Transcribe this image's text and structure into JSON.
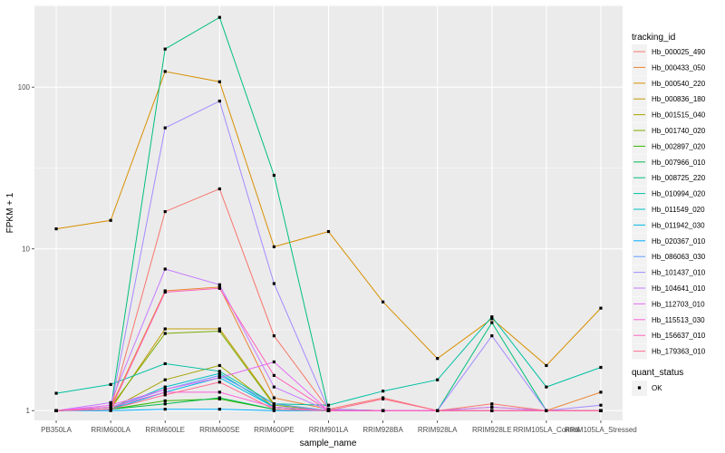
{
  "chart_data": {
    "type": "line",
    "xlabel": "sample_name",
    "ylabel": "FPKM + 1",
    "y_scale": "log10",
    "ylim": [
      0.87,
      320
    ],
    "y_ticks": [
      1,
      10,
      100
    ],
    "y_tick_labels": [
      "1",
      "10",
      "100"
    ],
    "categories": [
      "PB350LA",
      "RRIM600LA",
      "RRIM600LE",
      "RRIM600SE",
      "RRIM600PE",
      "RRIM901LA",
      "RRIM928BA",
      "RRIM928LA",
      "RRIM928LE",
      "RRIM105LA_Control",
      "RRIM105LA_Stressed"
    ],
    "category_tick_labels": [
      "PB350LA",
      "RRIM600LA",
      "RRIM600LE",
      "RRIM600SE",
      "RRIM600PE",
      "RRIM901LA",
      "RRIM928BA",
      "RRIM928LA",
      "RRIM928LE",
      "RRIM105LA_Control",
      "RRIM105LA_Stressed"
    ],
    "grid": true,
    "legend_position": "right",
    "legend_title": "tracking_id",
    "series": [
      {
        "name": "Hb_000025_490",
        "color": "#F8766D",
        "values": [
          1,
          1.02,
          17,
          23.5,
          2.9,
          1.02,
          1.2,
          1,
          1.1,
          1,
          1
        ]
      },
      {
        "name": "Hb_000433_050",
        "color": "#EA8331",
        "values": [
          1,
          1.05,
          5.5,
          5.8,
          1.2,
          1.02,
          1,
          1,
          1.05,
          1,
          1.3
        ]
      },
      {
        "name": "Hb_000540_220",
        "color": "#D89000",
        "values": [
          13.3,
          15,
          125,
          108,
          10.3,
          12.8,
          4.7,
          2.1,
          3.7,
          1.9,
          4.3
        ]
      },
      {
        "name": "Hb_000836_180",
        "color": "#C09B00",
        "values": [
          1,
          1.02,
          3.2,
          3.2,
          1.1,
          1,
          1,
          1,
          1,
          1,
          1
        ]
      },
      {
        "name": "Hb_001515_040",
        "color": "#A3A500",
        "values": [
          1,
          1.02,
          1.55,
          1.9,
          1.05,
          1,
          1,
          1,
          1,
          1,
          1
        ]
      },
      {
        "name": "Hb_001740_020",
        "color": "#7CAE00",
        "values": [
          1,
          1.05,
          3.0,
          3.1,
          1.08,
          1,
          1,
          1,
          1,
          1,
          1
        ]
      },
      {
        "name": "Hb_002897_020",
        "color": "#39B600",
        "values": [
          1,
          1.02,
          1.15,
          1.18,
          1.02,
          1,
          1,
          1,
          1,
          1,
          1
        ]
      },
      {
        "name": "Hb_007966_010",
        "color": "#00BB4E",
        "values": [
          1,
          1.02,
          1.1,
          1.2,
          1.02,
          1,
          1,
          1,
          1,
          1,
          1
        ]
      },
      {
        "name": "Hb_008725_220",
        "color": "#00BF7D",
        "values": [
          1,
          1.02,
          172,
          270,
          28.5,
          1.02,
          1,
          1,
          3.5,
          1,
          1
        ]
      },
      {
        "name": "Hb_010994_020",
        "color": "#00C1A3",
        "values": [
          1.28,
          1.45,
          1.95,
          1.75,
          1.1,
          1.08,
          1.32,
          1.55,
          3.8,
          1.4,
          1.85
        ]
      },
      {
        "name": "Hb_011549_020",
        "color": "#00BFC4",
        "values": [
          1,
          1.02,
          1.4,
          1.7,
          1.05,
          1,
          1,
          1,
          1,
          1,
          1
        ]
      },
      {
        "name": "Hb_011942_030",
        "color": "#00B8E5",
        "values": [
          1,
          1.02,
          1.3,
          1.6,
          1.05,
          1,
          1,
          1,
          1,
          1,
          1
        ]
      },
      {
        "name": "Hb_020367_010",
        "color": "#00ACFC",
        "values": [
          1,
          1.0,
          1.02,
          1.02,
          1.0,
          1,
          1,
          1,
          1,
          1,
          1
        ]
      },
      {
        "name": "Hb_086063_030",
        "color": "#619CFF",
        "values": [
          1,
          1.05,
          1.35,
          1.65,
          1.1,
          1,
          1,
          1,
          1,
          1,
          1
        ]
      },
      {
        "name": "Hb_101437_010",
        "color": "#A58AFF",
        "values": [
          1,
          1.02,
          56,
          82,
          6.1,
          1.02,
          1,
          1,
          2.9,
          1,
          1.08
        ]
      },
      {
        "name": "Hb_104641_010",
        "color": "#C77CFF",
        "values": [
          1,
          1.12,
          7.5,
          6.0,
          1.4,
          1,
          1,
          1,
          1.05,
          1,
          1
        ]
      },
      {
        "name": "Hb_112703_010",
        "color": "#E76BF3",
        "values": [
          1,
          1.08,
          1.35,
          1.6,
          2.0,
          1,
          1,
          1,
          1,
          1,
          1
        ]
      },
      {
        "name": "Hb_115513_030",
        "color": "#FA62DB",
        "values": [
          1,
          1.05,
          1.3,
          1.3,
          1.05,
          1,
          1,
          1,
          1,
          1,
          1
        ]
      },
      {
        "name": "Hb_156637_010",
        "color": "#FF62BC",
        "values": [
          1,
          1.02,
          5.4,
          5.7,
          1.65,
          1,
          1,
          1,
          1,
          1,
          1
        ]
      },
      {
        "name": "Hb_179363_010",
        "color": "#FF6C91",
        "values": [
          1,
          1.02,
          1.25,
          1.5,
          1.02,
          1,
          1.18,
          1,
          1,
          1,
          1
        ]
      }
    ],
    "shape_legend": {
      "title": "quant_status",
      "items": [
        {
          "label": "OK"
        }
      ]
    }
  }
}
